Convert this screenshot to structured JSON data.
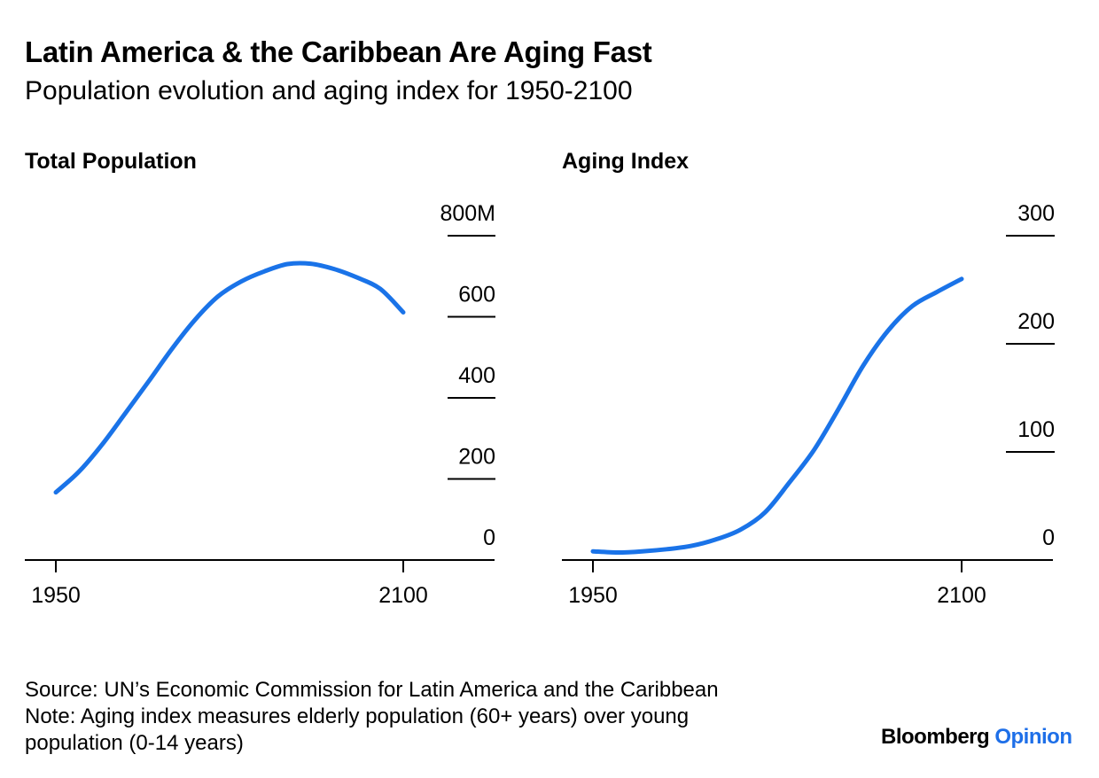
{
  "title": "Latin America & the Caribbean Are Aging Fast",
  "subtitle": "Population evolution and aging index for 1950-2100",
  "chart_data": [
    {
      "type": "line",
      "title": "Total Population",
      "x": [
        1950,
        1960,
        1970,
        1980,
        1990,
        2000,
        2010,
        2020,
        2030,
        2040,
        2050,
        2060,
        2070,
        2080,
        2090,
        2100
      ],
      "series": [
        {
          "values": [
            167,
            218,
            285,
            362,
            440,
            520,
            592,
            650,
            687,
            712,
            730,
            731,
            718,
            697,
            669,
            611
          ]
        }
      ],
      "xticks": [
        "1950",
        "2100"
      ],
      "yticks": [
        "0",
        "200",
        "400",
        "600",
        "800M"
      ],
      "ylim": [
        0,
        800
      ],
      "xlim": [
        1937,
        2140
      ],
      "color": "#1a73e8",
      "grid": "short right-side tick lines"
    },
    {
      "type": "line",
      "title": "Aging Index",
      "x": [
        1950,
        1960,
        1970,
        1980,
        1990,
        2000,
        2010,
        2020,
        2030,
        2040,
        2050,
        2060,
        2070,
        2080,
        2090,
        2100
      ],
      "series": [
        {
          "values": [
            8,
            7,
            8,
            10,
            13,
            19,
            28,
            44,
            72,
            102,
            140,
            180,
            212,
            235,
            248,
            260
          ]
        }
      ],
      "xticks": [
        "1950",
        "2100"
      ],
      "yticks": [
        "0",
        "100",
        "200",
        "300"
      ],
      "ylim": [
        0,
        300
      ],
      "xlim": [
        1937,
        2140
      ],
      "color": "#1a73e8",
      "grid": "short right-side tick lines"
    }
  ],
  "footer": {
    "source": "Source: UN’s Economic Commission for Latin America and the Caribbean",
    "note_line1": "Note: Aging index measures elderly population (60+ years) over young",
    "note_line2": "population (0-14 years)"
  },
  "brand": {
    "name": "Bloomberg",
    "sub": "Opinion"
  }
}
